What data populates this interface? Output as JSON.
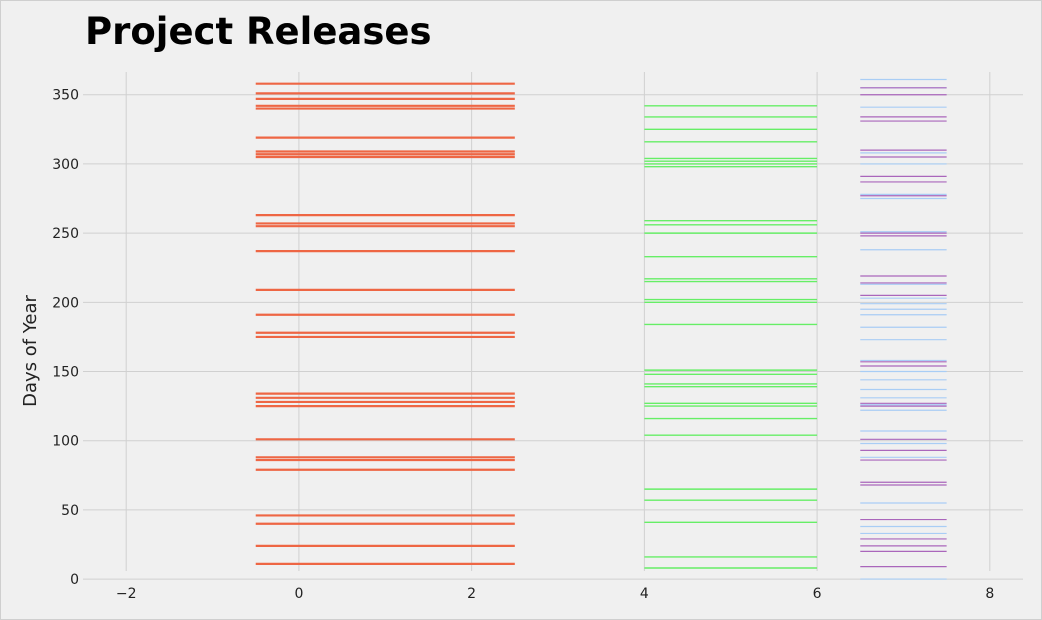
{
  "chart_data": {
    "type": "eventplot",
    "title": "Project Releases",
    "xlabel": "",
    "ylabel": "Days of Year",
    "xlim": [
      -2.5,
      8.5
    ],
    "ylim": [
      -5,
      378
    ],
    "xticks": [
      -2,
      0,
      2,
      4,
      6,
      8
    ],
    "yticks": [
      0,
      50,
      100,
      150,
      200,
      250,
      300,
      350
    ],
    "grid": true,
    "series": [
      {
        "color": "#ee6644",
        "x_range": [
          -0.5,
          2.5
        ],
        "line_width": 2.2,
        "values": [
          11,
          24,
          40,
          46,
          79,
          86,
          88,
          101,
          125,
          128,
          131,
          134,
          175,
          178,
          191,
          209,
          237,
          255,
          257,
          263,
          305,
          307,
          309,
          319,
          340,
          342,
          347,
          351,
          358
        ]
      },
      {
        "color": "#66ee66",
        "x_range": [
          4.0,
          6.0
        ],
        "line_width": 1.4,
        "values": [
          8,
          16,
          41,
          57,
          65,
          104,
          116,
          125,
          127,
          139,
          141,
          148,
          151,
          184,
          200,
          202,
          215,
          217,
          233,
          250,
          256,
          259,
          298,
          300,
          302,
          304,
          316,
          325,
          334,
          342
        ]
      },
      {
        "color": "#a9cdf5",
        "x_range": [
          6.5,
          7.5
        ],
        "line_width": 1.2,
        "values": [
          0,
          33,
          38,
          55,
          88,
          98,
          107,
          122,
          126,
          131,
          137,
          144,
          150,
          158,
          173,
          182,
          191,
          195,
          199,
          203,
          213,
          238,
          251,
          275,
          278,
          300,
          308,
          341,
          355,
          361
        ]
      },
      {
        "color": "#aa66bb",
        "x_range": [
          6.5,
          7.5
        ],
        "line_width": 1.2,
        "values": [
          9,
          20,
          24,
          29,
          43,
          68,
          70,
          86,
          93,
          101,
          125,
          127,
          154,
          157,
          205,
          214,
          219,
          248,
          250,
          277,
          287,
          291,
          305,
          310,
          331,
          334,
          350,
          355
        ]
      }
    ]
  }
}
